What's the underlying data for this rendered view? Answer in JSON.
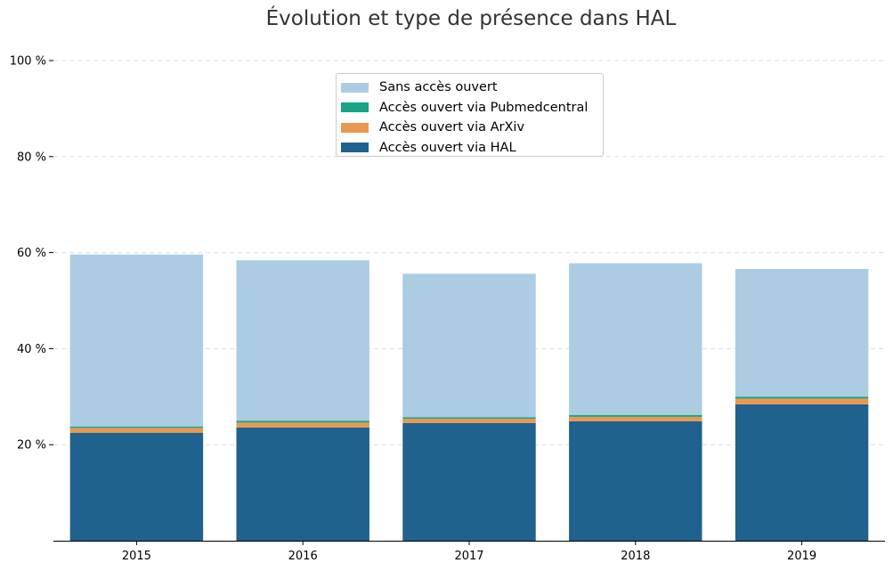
{
  "chart_data": {
    "type": "bar",
    "stacked": true,
    "title": "Évolution et type de présence dans HAL",
    "xlabel": "",
    "ylabel": "",
    "categories": [
      "2015",
      "2016",
      "2017",
      "2018",
      "2019"
    ],
    "ylim": [
      0,
      100
    ],
    "yticks": [
      20,
      40,
      60,
      80,
      100
    ],
    "ytick_labels": [
      "20 %",
      "40 %",
      "60 %",
      "80 %",
      "100 %"
    ],
    "grid": "horizontal dashed",
    "legend_position": "top-center",
    "series": [
      {
        "name": "Accès ouvert via HAL",
        "color": "#1f628e",
        "values": [
          22.5,
          23.6,
          24.5,
          24.9,
          28.4
        ]
      },
      {
        "name": "Accès ouvert via ArXiv",
        "color": "#ea9850",
        "values": [
          1.0,
          1.0,
          0.9,
          0.9,
          1.2
        ]
      },
      {
        "name": "Accès ouvert via Pubmedcentral",
        "color": "#1aa385",
        "values": [
          0.3,
          0.4,
          0.3,
          0.4,
          0.4
        ]
      },
      {
        "name": "Sans accès ouvert",
        "color": "#abcce3",
        "values": [
          35.8,
          33.4,
          29.9,
          31.6,
          26.6
        ]
      }
    ],
    "legend_order": [
      "Sans accès ouvert",
      "Accès ouvert via Pubmedcentral",
      "Accès ouvert via ArXiv",
      "Accès ouvert via HAL"
    ]
  }
}
